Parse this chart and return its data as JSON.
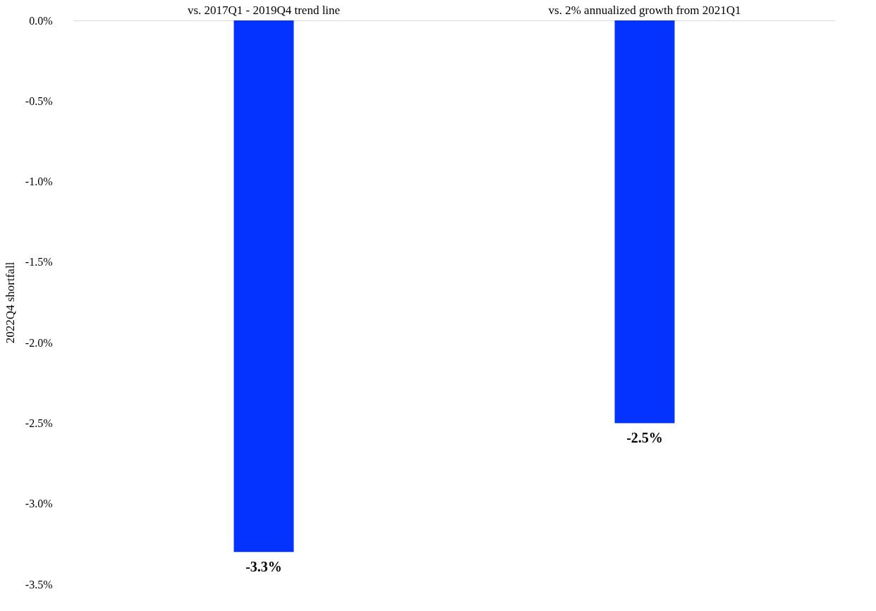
{
  "chart_data": {
    "type": "bar",
    "ylabel": "2022Q4 shortfall",
    "categories": [
      "vs. 2017Q1 - 2019Q4 trend line",
      "vs. 2% annualized growth from 2021Q1"
    ],
    "values": [
      -3.3,
      -2.5
    ],
    "value_labels": [
      "-3.3%",
      "-2.5%"
    ],
    "color": "#0433ff",
    "ylim": [
      -3.5,
      0
    ],
    "yticks": [
      {
        "value": 0,
        "label": "0.0%"
      },
      {
        "value": -0.5,
        "label": "-0.5%"
      },
      {
        "value": -1,
        "label": "-1.0%"
      },
      {
        "value": -1.5,
        "label": "-1.5%"
      },
      {
        "value": -2,
        "label": "-2.0%"
      },
      {
        "value": -2.5,
        "label": "-2.5%"
      },
      {
        "value": -3,
        "label": "-3.0%"
      },
      {
        "value": -3.5,
        "label": "-3.5%"
      }
    ],
    "grid": false
  }
}
